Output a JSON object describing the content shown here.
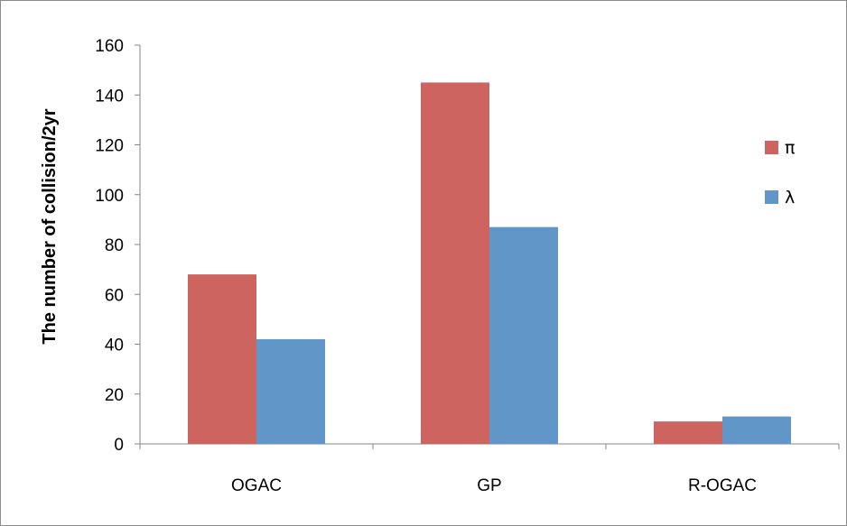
{
  "chart_data": {
    "type": "bar",
    "title": "",
    "xlabel": "",
    "ylabel": "The number of collision/2yr",
    "categories": [
      "OGAC",
      "GP",
      "R-OGAC"
    ],
    "series": [
      {
        "name": "π",
        "color": "#cd6460",
        "values": [
          68,
          145,
          9
        ]
      },
      {
        "name": "λ",
        "color": "#6096c8",
        "values": [
          42,
          87,
          11
        ]
      }
    ],
    "ylim": [
      0,
      160
    ],
    "yticks": [
      0,
      20,
      40,
      60,
      80,
      100,
      120,
      140,
      160
    ],
    "grid": false,
    "legend_position": "right"
  }
}
